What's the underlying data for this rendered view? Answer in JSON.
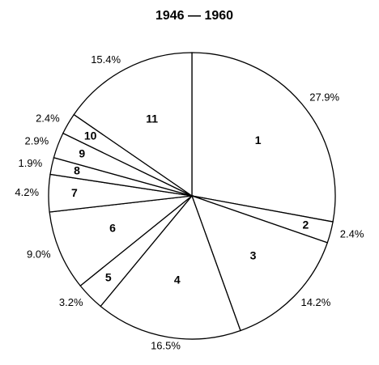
{
  "chart_data": {
    "type": "pie",
    "title": "1946 — 1960",
    "categories": [
      "1",
      "2",
      "3",
      "4",
      "5",
      "6",
      "7",
      "8",
      "9",
      "10",
      "11"
    ],
    "values": [
      27.9,
      2.4,
      14.2,
      16.5,
      3.2,
      9.0,
      4.2,
      1.9,
      2.9,
      2.4,
      15.4
    ],
    "value_labels": [
      "27.9%",
      "2.4%",
      "14.2%",
      "16.5%",
      "3.2%",
      "9.0%",
      "4.2%",
      "1.9%",
      "2.9%",
      "2.4%",
      "15.4%"
    ],
    "color": "#ffffff"
  }
}
